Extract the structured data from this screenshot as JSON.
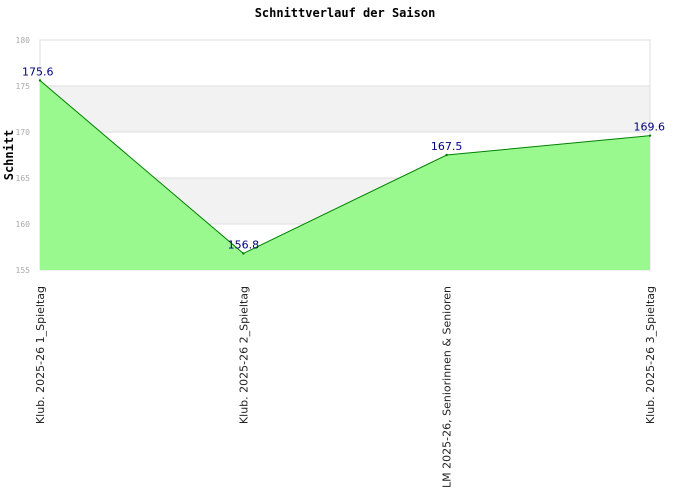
{
  "chart_data": {
    "type": "area",
    "title": "Schnittverlauf der Saison",
    "xlabel": "",
    "ylabel": "Schnitt",
    "categories": [
      "Klub. 2025-26  1_Spieltag",
      "Klub. 2025-26  2_Spieltag",
      "LM 2025-26, Seniorinnen & Senioren",
      "Klub. 2025-26  3_Spieltag"
    ],
    "series": [
      {
        "values": [
          175.6,
          156.8,
          167.5,
          169.6
        ]
      }
    ],
    "data_labels": [
      "175.6",
      "156.8",
      "167.5",
      "169.6"
    ],
    "ylim": [
      155,
      180
    ],
    "yticks": [
      "155",
      "160",
      "165",
      "170",
      "175",
      "180"
    ],
    "grid": "horizontal alternating bands",
    "colors": {
      "area_fill": "#99f98f",
      "line": "#008000",
      "band": "#f2f2f2",
      "grid": "#dddddd",
      "data_label": "#000080"
    }
  }
}
